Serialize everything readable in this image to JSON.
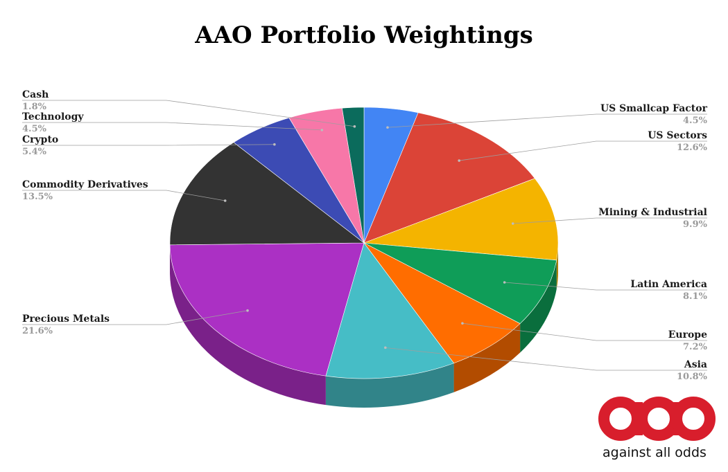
{
  "chart_data": {
    "type": "pie",
    "title": "AAO Portfolio Weightings",
    "three_d": true,
    "start": "top",
    "direction": "clockwise",
    "slices": [
      {
        "label": "US Smallcap Factor",
        "value_label": "4.5%",
        "value": 4.5,
        "color": "#4285f4",
        "dark": "#2e5daa",
        "side": "right"
      },
      {
        "label": "US Sectors",
        "value_label": "12.6%",
        "value": 12.6,
        "color": "#db4437",
        "dark": "#992f26",
        "side": "right"
      },
      {
        "label": "Mining & Industrial",
        "value_label": "9.9%",
        "value": 9.9,
        "color": "#f4b400",
        "dark": "#aa7e00",
        "side": "right"
      },
      {
        "label": "Latin America",
        "value_label": "8.1%",
        "value": 8.1,
        "color": "#0f9d58",
        "dark": "#0a6e3d",
        "side": "right"
      },
      {
        "label": "Europe",
        "value_label": "7.2%",
        "value": 7.2,
        "color": "#ff6d00",
        "dark": "#b24c00",
        "side": "right"
      },
      {
        "label": "Asia",
        "value_label": "10.8%",
        "value": 10.8,
        "color": "#46bdc6",
        "dark": "#318489",
        "side": "right"
      },
      {
        "label": "Precious Metals",
        "value_label": "21.6%",
        "value": 21.6,
        "color": "#ab30c4",
        "dark": "#7a2189",
        "side": "left"
      },
      {
        "label": "Commodity Derivatives",
        "value_label": "13.5%",
        "value": 13.5,
        "color": "#333333",
        "dark": "#222222",
        "side": "left"
      },
      {
        "label": "Crypto",
        "value_label": "5.4%",
        "value": 5.4,
        "color": "#3c4bb4",
        "dark": "#2a347e",
        "side": "left"
      },
      {
        "label": "Technology",
        "value_label": "4.5%",
        "value": 4.5,
        "color": "#f777a8",
        "dark": "#ad5376",
        "side": "left"
      },
      {
        "label": "Cash",
        "value_label": "1.8%",
        "value": 1.8,
        "color": "#0b6b5c",
        "dark": "#074a40",
        "side": "left"
      }
    ]
  },
  "logo": {
    "glyphs": "aao",
    "tagline": "against all odds",
    "color": "#d81e2c"
  }
}
